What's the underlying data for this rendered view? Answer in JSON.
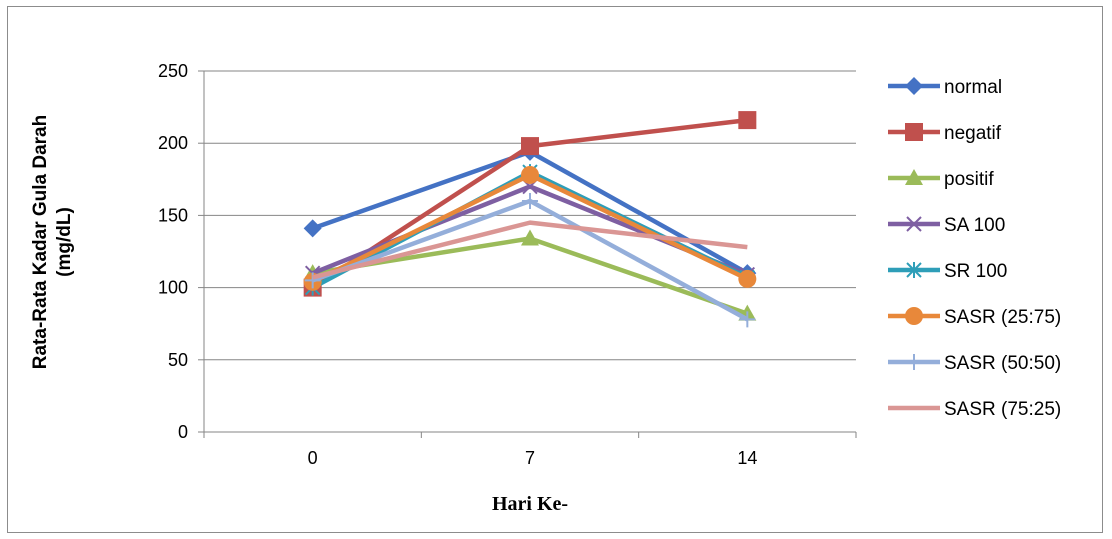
{
  "chart_data": {
    "type": "line",
    "title": "",
    "xlabel": "Hari Ke-",
    "ylabel_line1": "Rata-Rata Kadar Gula Darah",
    "ylabel_line2": "(mg/dL)",
    "categories": [
      "0",
      "7",
      "14"
    ],
    "ylim": [
      0,
      250
    ],
    "yticks": [
      0,
      50,
      100,
      150,
      200,
      250
    ],
    "grid": true,
    "legend_position": "right",
    "series": [
      {
        "name": "normal",
        "color": "#4472C4",
        "marker": "diamond",
        "values": [
          141,
          194,
          110
        ]
      },
      {
        "name": "negatif",
        "color": "#C0504D",
        "marker": "square",
        "values": [
          100,
          198,
          216
        ]
      },
      {
        "name": "positif",
        "color": "#9BBB59",
        "marker": "triangle",
        "values": [
          110,
          134,
          82
        ]
      },
      {
        "name": "SA 100",
        "color": "#7E5FA2",
        "marker": "x",
        "values": [
          110,
          170,
          109
        ]
      },
      {
        "name": "SR 100",
        "color": "#2E9EB8",
        "marker": "star",
        "values": [
          100,
          180,
          107
        ]
      },
      {
        "name": "SASR (25:75)",
        "color": "#E8883A",
        "marker": "circle",
        "values": [
          104,
          178,
          106
        ]
      },
      {
        "name": "SASR (50:50)",
        "color": "#94AEDA",
        "marker": "plus",
        "values": [
          105,
          160,
          78
        ]
      },
      {
        "name": "SASR (75:25)",
        "color": "#DA9694",
        "marker": "none",
        "values": [
          107,
          145,
          128
        ]
      }
    ]
  }
}
